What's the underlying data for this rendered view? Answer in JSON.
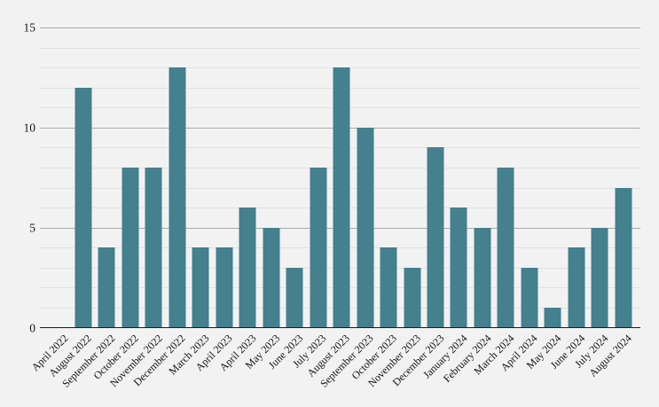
{
  "chart_data": {
    "type": "bar",
    "title": "",
    "xlabel": "",
    "ylabel": "",
    "categories": [
      "April 2022",
      "August 2022",
      "September 2022",
      "October 2022",
      "November 2022",
      "December 2022",
      "March 2023",
      "April 2023",
      "April 2023",
      "May 2023",
      "June 2023",
      "July 2023",
      "August 2023",
      "September 2023",
      "October 2023",
      "November 2023",
      "December 2023",
      "January 2024",
      "February 2024",
      "March 2024",
      "April 2024",
      "May 2024",
      "June 2024",
      "July 2024",
      "August 2024"
    ],
    "values": [
      0,
      12,
      4,
      8,
      8,
      13,
      4,
      4,
      6,
      5,
      3,
      8,
      13,
      10,
      4,
      3,
      9,
      6,
      5,
      8,
      3,
      1,
      4,
      5,
      7
    ],
    "ylim": [
      0,
      15
    ],
    "yticks": [
      0,
      5,
      10,
      15
    ],
    "grid": "horizontal minor line every 1 unit, emphasized lines at labeled ticks, no vertical grid",
    "legend": "none",
    "x_tick_label_rotation": 45,
    "colors": {
      "bar": "#44808e",
      "background": "#f2f2f2",
      "grid_minor": "#e1e1e1",
      "grid_major": "#ababab",
      "axis": "#1c1c1c",
      "text": "#141414"
    }
  }
}
